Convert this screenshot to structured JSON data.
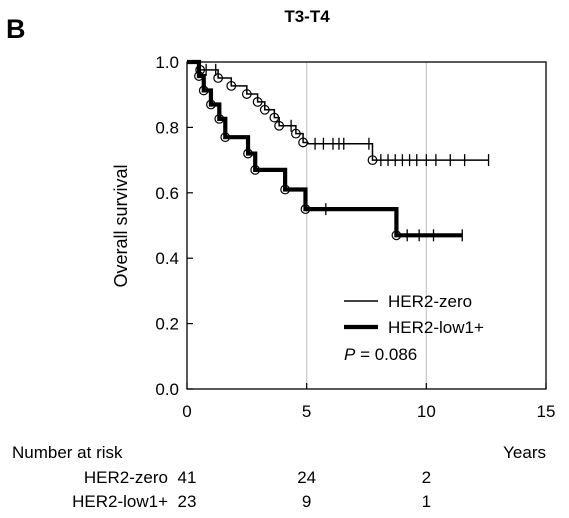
{
  "panel_label": "B",
  "chart_data": {
    "type": "line",
    "title": "T3-T4",
    "ylabel": "Overall survival",
    "xlim": [
      0,
      15
    ],
    "ylim": [
      0.0,
      1.0
    ],
    "x_ticks": [
      0,
      5,
      10,
      15
    ],
    "x_tick_labels": [
      "0",
      "5",
      "10",
      "15"
    ],
    "y_ticks": [
      0.0,
      0.2,
      0.4,
      0.6,
      0.8,
      1.0
    ],
    "y_tick_labels": [
      "0.0",
      "0.2",
      "0.4",
      "0.6",
      "0.8",
      "1.0"
    ],
    "vertical_gridlines_at": [
      5,
      10
    ],
    "legend_position": "lower-right",
    "p_value": {
      "label": "P",
      "text": " = 0.086"
    },
    "series": [
      {
        "name": "HER2-zero",
        "line": "thin",
        "steps": [
          [
            0,
            1.0
          ],
          [
            0.55,
            0.976
          ],
          [
            0.8,
            0.976
          ],
          [
            1.2,
            0.976
          ],
          [
            1.3,
            0.951
          ],
          [
            1.85,
            0.927
          ],
          [
            2.5,
            0.902
          ],
          [
            2.95,
            0.878
          ],
          [
            3.25,
            0.854
          ],
          [
            3.65,
            0.83
          ],
          [
            3.85,
            0.805
          ],
          [
            4.55,
            0.781
          ],
          [
            4.85,
            0.754
          ],
          [
            5.05,
            0.75
          ],
          [
            7.75,
            0.7
          ],
          [
            12.6,
            0.7
          ]
        ],
        "censor_marks": [
          [
            0.8,
            0.976
          ],
          [
            1.2,
            0.976
          ],
          [
            4.35,
            0.805
          ],
          [
            5.35,
            0.75
          ],
          [
            5.7,
            0.75
          ],
          [
            6.1,
            0.75
          ],
          [
            6.35,
            0.75
          ],
          [
            6.55,
            0.75
          ],
          [
            7.6,
            0.75
          ],
          [
            8.1,
            0.7
          ],
          [
            8.4,
            0.7
          ],
          [
            8.7,
            0.7
          ],
          [
            9.0,
            0.7
          ],
          [
            9.3,
            0.7
          ],
          [
            9.6,
            0.7
          ],
          [
            10.0,
            0.7
          ],
          [
            10.4,
            0.7
          ],
          [
            11.0,
            0.7
          ],
          [
            11.6,
            0.7
          ],
          [
            12.6,
            0.7
          ]
        ],
        "event_circles": [
          [
            0.55,
            0.976
          ],
          [
            1.3,
            0.951
          ],
          [
            1.85,
            0.927
          ],
          [
            2.5,
            0.902
          ],
          [
            2.95,
            0.878
          ],
          [
            3.25,
            0.854
          ],
          [
            3.65,
            0.83
          ],
          [
            3.85,
            0.805
          ],
          [
            4.55,
            0.781
          ],
          [
            4.85,
            0.754
          ],
          [
            7.75,
            0.7
          ]
        ]
      },
      {
        "name": "HER2-low1+",
        "line": "thick",
        "steps": [
          [
            0,
            1.0
          ],
          [
            0.5,
            0.957
          ],
          [
            0.7,
            0.913
          ],
          [
            1.0,
            0.87
          ],
          [
            1.35,
            0.826
          ],
          [
            1.6,
            0.77
          ],
          [
            2.55,
            0.72
          ],
          [
            2.85,
            0.67
          ],
          [
            4.1,
            0.61
          ],
          [
            4.95,
            0.55
          ],
          [
            8.75,
            0.47
          ],
          [
            11.5,
            0.47
          ]
        ],
        "censor_marks": [
          [
            5.8,
            0.55
          ],
          [
            9.2,
            0.47
          ],
          [
            9.7,
            0.47
          ],
          [
            10.3,
            0.47
          ],
          [
            11.5,
            0.47
          ]
        ],
        "event_circles": [
          [
            0.5,
            0.957
          ],
          [
            0.7,
            0.913
          ],
          [
            1.0,
            0.87
          ],
          [
            1.35,
            0.826
          ],
          [
            1.6,
            0.77
          ],
          [
            2.55,
            0.72
          ],
          [
            2.85,
            0.67
          ],
          [
            4.1,
            0.61
          ],
          [
            4.95,
            0.55
          ],
          [
            8.75,
            0.47
          ]
        ]
      }
    ]
  },
  "risk_table": {
    "header": "Number at risk",
    "unit_label": "Years",
    "times": [
      0,
      5,
      10
    ],
    "rows": [
      {
        "group": "HER2-zero",
        "counts": [
          "41",
          "24",
          "2"
        ]
      },
      {
        "group": "HER2-low1+",
        "counts": [
          "23",
          "9",
          "1"
        ]
      }
    ]
  }
}
